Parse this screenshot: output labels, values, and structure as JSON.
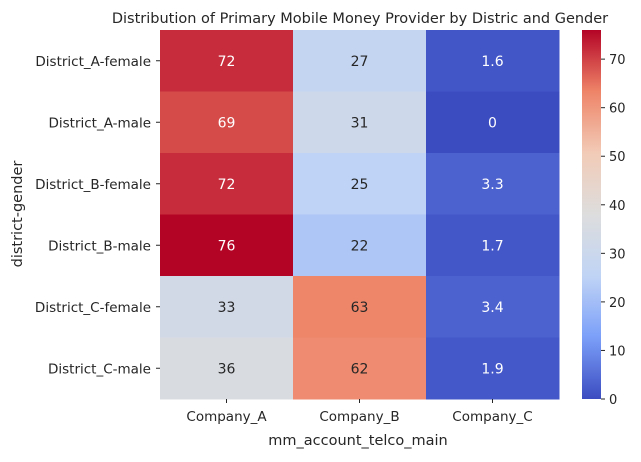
{
  "chart_data": {
    "type": "heatmap",
    "title": "Distribution of Primary Mobile Money Provider by Distric and Gender",
    "xlabel": "mm_account_telco_main",
    "ylabel": "district-gender",
    "columns": [
      "Company_A",
      "Company_B",
      "Company_C"
    ],
    "rows": [
      "District_A-female",
      "District_A-male",
      "District_B-female",
      "District_B-male",
      "District_C-female",
      "District_C-male"
    ],
    "values": [
      [
        72,
        27,
        1.6
      ],
      [
        69,
        31,
        0
      ],
      [
        72,
        25,
        3.3
      ],
      [
        76,
        22,
        1.7
      ],
      [
        33,
        63,
        3.4
      ],
      [
        36,
        62,
        1.9
      ]
    ],
    "value_labels": [
      [
        "72",
        "27",
        "1.6"
      ],
      [
        "69",
        "31",
        "0"
      ],
      [
        "72",
        "25",
        "3.3"
      ],
      [
        "76",
        "22",
        "1.7"
      ],
      [
        "33",
        "63",
        "3.4"
      ],
      [
        "36",
        "62",
        "1.9"
      ]
    ],
    "colormap": "coolwarm",
    "colormap_stops": [
      "#3b4cc0",
      "#7b9ff9",
      "#c0d4f5",
      "#dddddd",
      "#f2cbb7",
      "#ee8468",
      "#b40426"
    ],
    "vmin": 0,
    "vmax": 76,
    "colorbar_ticks": [
      0,
      10,
      20,
      30,
      40,
      50,
      60,
      70
    ]
  }
}
